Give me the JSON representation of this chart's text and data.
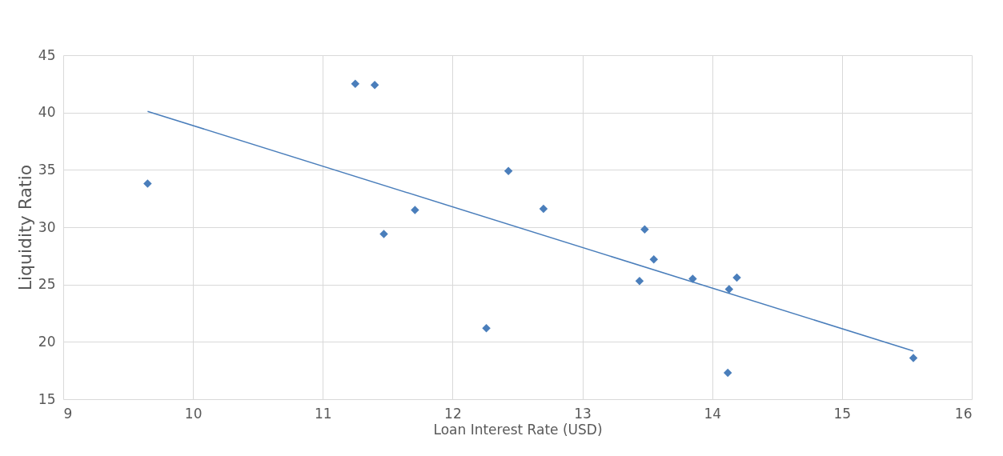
{
  "chart_data": {
    "type": "scatter",
    "xlabel": "Loan Interest Rate (USD)",
    "ylabel": "Liquidity Ratio",
    "x": [
      9.65,
      11.25,
      11.4,
      11.47,
      11.71,
      12.26,
      12.43,
      12.7,
      13.44,
      13.48,
      13.55,
      13.85,
      14.13,
      14.12,
      14.19,
      15.55
    ],
    "series": [
      {
        "type": "scatter",
        "color": "#4a7ebb",
        "values": [
          33.8,
          42.5,
          42.4,
          29.4,
          31.5,
          21.2,
          34.9,
          31.6,
          25.3,
          29.8,
          27.2,
          25.5,
          24.6,
          17.3,
          25.6,
          18.6
        ]
      },
      {
        "type": "line",
        "marker": "none",
        "color": "#4a7ebb",
        "x": [
          9.65,
          15.55
        ],
        "values": [
          40.1,
          19.2
        ]
      }
    ],
    "xlim": [
      9,
      16
    ],
    "xticks": [
      9,
      10,
      11,
      12,
      13,
      14,
      15,
      16
    ],
    "ylim": [
      15,
      45
    ],
    "yticks": [
      15,
      20,
      25,
      30,
      35,
      40,
      45
    ],
    "grid": true,
    "marker": "diamond"
  }
}
